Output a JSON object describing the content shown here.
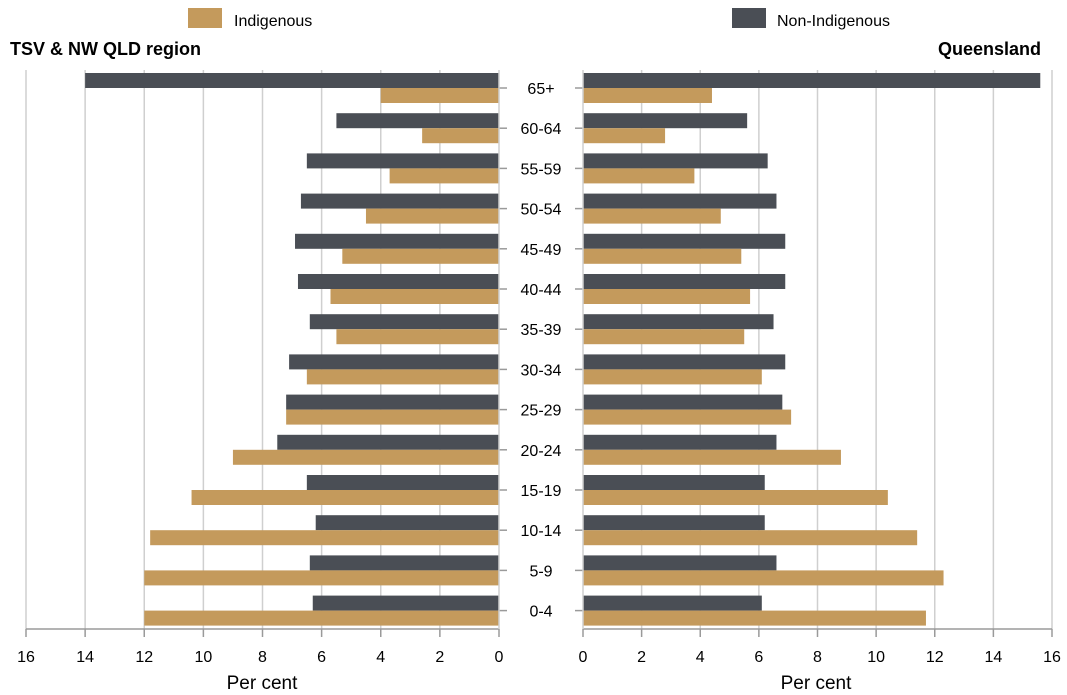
{
  "chart_data": {
    "type": "bar",
    "orientation": "horizontal",
    "layout": "back-to-back population pyramid",
    "categories": [
      "65+",
      "60-64",
      "55-59",
      "50-54",
      "45-49",
      "40-44",
      "35-39",
      "30-34",
      "25-29",
      "20-24",
      "15-19",
      "10-14",
      "5-9",
      "0-4"
    ],
    "legend": [
      {
        "name": "Indigenous",
        "color": "#c49a5c"
      },
      {
        "name": "Non-Indigenous",
        "color": "#4a4e55"
      }
    ],
    "panels": [
      {
        "title": "TSV & NW QLD region",
        "xlabel": "Per cent",
        "xlim": [
          0,
          16
        ],
        "direction": "reversed",
        "ticks": [
          "16",
          "14",
          "12",
          "10",
          "8",
          "6",
          "4",
          "2",
          "0"
        ],
        "series": [
          {
            "name": "Non-Indigenous",
            "values": [
              14.0,
              5.5,
              6.5,
              6.7,
              6.9,
              6.8,
              6.4,
              7.1,
              7.2,
              7.5,
              6.5,
              6.2,
              6.4,
              6.3
            ]
          },
          {
            "name": "Indigenous",
            "values": [
              4.0,
              2.6,
              3.7,
              4.5,
              5.3,
              5.7,
              5.5,
              6.5,
              7.2,
              9.0,
              10.4,
              11.8,
              12.0,
              12.0
            ]
          }
        ]
      },
      {
        "title": "Queensland",
        "xlabel": "Per cent",
        "xlim": [
          0,
          16
        ],
        "direction": "normal",
        "ticks": [
          "0",
          "2",
          "4",
          "6",
          "8",
          "10",
          "12",
          "14",
          "16"
        ],
        "series": [
          {
            "name": "Non-Indigenous",
            "values": [
              15.6,
              5.6,
              6.3,
              6.6,
              6.9,
              6.9,
              6.5,
              6.9,
              6.8,
              6.6,
              6.2,
              6.2,
              6.6,
              6.1
            ]
          },
          {
            "name": "Indigenous",
            "values": [
              4.4,
              2.8,
              3.8,
              4.7,
              5.4,
              5.7,
              5.5,
              6.1,
              7.1,
              8.8,
              10.4,
              11.4,
              12.3,
              11.7
            ]
          }
        ]
      }
    ],
    "grid": true,
    "legend_position": "top"
  }
}
